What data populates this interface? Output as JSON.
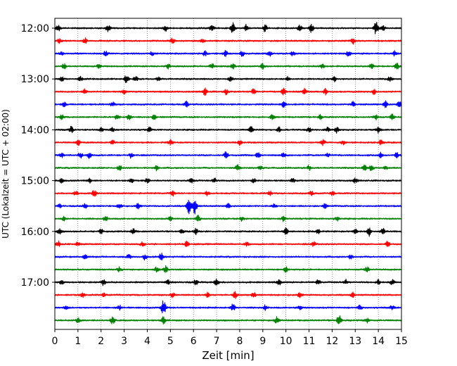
{
  "chart_data": {
    "type": "line",
    "subtype": "helicorder seismogram",
    "title": "",
    "xlabel": "Zeit  [min]",
    "ylabel": "UTC (Lokalzeit = UTC + 02:00)",
    "xlim": [
      0,
      15
    ],
    "x_ticks": [
      0,
      1,
      2,
      3,
      4,
      5,
      6,
      7,
      8,
      9,
      10,
      11,
      12,
      13,
      14,
      15
    ],
    "y_range": [
      "12:00",
      "17:59"
    ],
    "y_ticks": [
      "12:00",
      "13:00",
      "14:00",
      "15:00",
      "16:00",
      "17:00"
    ],
    "trace_interval_minutes": 15,
    "trace_start_times": [
      "12:00",
      "12:15",
      "12:30",
      "12:45",
      "13:00",
      "13:15",
      "13:30",
      "13:45",
      "14:00",
      "14:15",
      "14:30",
      "14:45",
      "15:00",
      "15:15",
      "15:30",
      "15:45",
      "16:00",
      "16:15",
      "16:30",
      "16:45",
      "17:00",
      "17:15",
      "17:30",
      "17:45"
    ],
    "trace_color_cycle": [
      "#000000",
      "#ff0000",
      "#0000ff",
      "#008000"
    ],
    "grid": "vertical dotted lines at each minute",
    "events": [
      [
        [
          0.15,
          0.45
        ],
        [
          2.3,
          0.5
        ],
        [
          4.8,
          0.45
        ],
        [
          6.8,
          0.5
        ],
        [
          7.7,
          1.0
        ],
        [
          8.3,
          0.6
        ],
        [
          9.1,
          0.55
        ],
        [
          10.6,
          0.5
        ],
        [
          11.1,
          0.7
        ],
        [
          13.9,
          1.0
        ],
        [
          14.2,
          0.5
        ]
      ],
      [
        [
          0.2,
          0.35
        ],
        [
          1.3,
          0.45
        ],
        [
          5.1,
          0.5
        ],
        [
          6.4,
          0.45
        ],
        [
          12.9,
          0.45
        ]
      ],
      [
        [
          0.3,
          0.35
        ],
        [
          2.2,
          0.4
        ],
        [
          4.2,
          0.3
        ],
        [
          6.5,
          0.35
        ],
        [
          7.4,
          0.45
        ],
        [
          8.1,
          0.4
        ],
        [
          9.3,
          0.35
        ],
        [
          10.3,
          0.35
        ],
        [
          12.7,
          0.4
        ],
        [
          14.7,
          0.35
        ]
      ],
      [
        [
          0.4,
          0.4
        ],
        [
          1.9,
          0.35
        ],
        [
          4.9,
          0.35
        ],
        [
          6.8,
          0.4
        ],
        [
          7.7,
          0.45
        ],
        [
          9.0,
          0.4
        ],
        [
          11.6,
          0.35
        ],
        [
          13.7,
          0.4
        ],
        [
          14.8,
          0.45
        ]
      ],
      [
        [
          0.3,
          0.35
        ],
        [
          1.1,
          0.35
        ],
        [
          3.1,
          0.7
        ],
        [
          3.5,
          0.4
        ],
        [
          4.5,
          0.35
        ],
        [
          7.6,
          0.4
        ],
        [
          10.1,
          0.35
        ],
        [
          12.1,
          0.35
        ],
        [
          14.5,
          0.4
        ]
      ],
      [
        [
          1.3,
          0.45
        ],
        [
          3.0,
          0.35
        ],
        [
          6.5,
          0.6
        ],
        [
          7.4,
          0.4
        ],
        [
          8.6,
          0.5
        ],
        [
          9.9,
          0.5
        ],
        [
          10.8,
          0.45
        ],
        [
          11.7,
          0.45
        ],
        [
          13.8,
          0.45
        ]
      ],
      [
        [
          0.4,
          0.35
        ],
        [
          2.5,
          0.35
        ],
        [
          5.7,
          0.45
        ],
        [
          9.9,
          0.45
        ],
        [
          12.9,
          0.4
        ],
        [
          14.3,
          0.5
        ],
        [
          14.9,
          0.45
        ]
      ],
      [
        [
          0.3,
          0.35
        ],
        [
          2.7,
          0.5
        ],
        [
          3.2,
          0.4
        ],
        [
          4.3,
          0.35
        ],
        [
          9.4,
          0.4
        ],
        [
          11.5,
          0.35
        ],
        [
          13.9,
          0.4
        ],
        [
          14.6,
          0.5
        ]
      ],
      [
        [
          0.7,
          0.6
        ],
        [
          2.0,
          0.35
        ],
        [
          2.5,
          0.4
        ],
        [
          4.1,
          0.35
        ],
        [
          8.5,
          0.5
        ],
        [
          9.7,
          0.4
        ],
        [
          11.0,
          0.4
        ],
        [
          11.8,
          0.35
        ],
        [
          12.2,
          0.5
        ],
        [
          14.0,
          0.45
        ]
      ],
      [
        [
          1.0,
          0.45
        ],
        [
          2.5,
          0.35
        ],
        [
          5.0,
          0.4
        ],
        [
          8.0,
          0.4
        ],
        [
          11.6,
          0.45
        ],
        [
          12.5,
          0.4
        ],
        [
          14.1,
          0.35
        ]
      ],
      [
        [
          0.3,
          0.35
        ],
        [
          1.1,
          0.5
        ],
        [
          1.5,
          0.45
        ],
        [
          3.3,
          0.4
        ],
        [
          7.4,
          0.5
        ],
        [
          8.8,
          0.45
        ],
        [
          9.9,
          0.35
        ],
        [
          11.8,
          0.35
        ],
        [
          14.1,
          0.4
        ],
        [
          14.8,
          0.45
        ]
      ],
      [
        [
          2.8,
          0.45
        ],
        [
          4.4,
          0.35
        ],
        [
          7.9,
          0.45
        ],
        [
          8.9,
          0.35
        ],
        [
          11.0,
          0.35
        ],
        [
          13.4,
          0.4
        ],
        [
          13.7,
          0.45
        ],
        [
          14.3,
          0.35
        ]
      ],
      [
        [
          0.3,
          0.3
        ],
        [
          1.5,
          0.35
        ],
        [
          3.3,
          0.4
        ],
        [
          4.0,
          0.35
        ],
        [
          5.9,
          0.5
        ],
        [
          6.9,
          0.35
        ],
        [
          8.6,
          0.35
        ],
        [
          10.3,
          0.35
        ],
        [
          13.0,
          0.4
        ]
      ],
      [
        [
          0.9,
          0.4
        ],
        [
          1.7,
          0.55
        ],
        [
          5.1,
          0.35
        ],
        [
          6.6,
          0.35
        ],
        [
          9.3,
          0.35
        ],
        [
          11.1,
          0.35
        ],
        [
          12.0,
          0.35
        ]
      ],
      [
        [
          0.2,
          0.3
        ],
        [
          1.3,
          0.35
        ],
        [
          2.8,
          0.4
        ],
        [
          3.6,
          0.4
        ],
        [
          5.8,
          1.2
        ],
        [
          6.05,
          1.5
        ],
        [
          7.5,
          0.35
        ],
        [
          9.5,
          0.35
        ],
        [
          11.7,
          0.35
        ]
      ],
      [
        [
          0.4,
          0.3
        ],
        [
          2.2,
          0.35
        ],
        [
          5.0,
          0.35
        ],
        [
          6.2,
          0.5
        ],
        [
          8.1,
          0.35
        ],
        [
          9.9,
          0.4
        ],
        [
          12.2,
          0.35
        ]
      ],
      [
        [
          0.2,
          0.45
        ],
        [
          2.0,
          0.35
        ],
        [
          3.4,
          0.5
        ],
        [
          5.5,
          0.35
        ],
        [
          6.1,
          0.45
        ],
        [
          10.0,
          0.5
        ],
        [
          11.4,
          0.45
        ],
        [
          13.0,
          0.45
        ],
        [
          13.6,
          0.8
        ],
        [
          14.2,
          0.45
        ]
      ],
      [
        [
          0.15,
          0.45
        ],
        [
          1.0,
          0.35
        ],
        [
          3.8,
          0.35
        ],
        [
          5.7,
          0.4
        ],
        [
          8.3,
          0.35
        ],
        [
          11.2,
          0.35
        ],
        [
          14.4,
          0.4
        ]
      ],
      [
        [
          1.3,
          0.35
        ],
        [
          3.2,
          0.35
        ],
        [
          3.9,
          0.45
        ],
        [
          4.6,
          0.6
        ],
        [
          12.8,
          0.35
        ]
      ],
      [
        [
          2.8,
          0.35
        ],
        [
          4.4,
          0.35
        ],
        [
          4.8,
          0.5
        ],
        [
          10.0,
          0.45
        ],
        [
          13.5,
          0.45
        ]
      ],
      [
        [
          0.3,
          0.45
        ],
        [
          2.1,
          0.5
        ],
        [
          4.9,
          0.35
        ],
        [
          6.1,
          0.45
        ],
        [
          7.0,
          0.6
        ],
        [
          9.7,
          0.45
        ],
        [
          11.4,
          0.35
        ],
        [
          12.6,
          0.4
        ],
        [
          14.0,
          0.4
        ],
        [
          14.6,
          0.45
        ]
      ],
      [
        [
          1.2,
          0.4
        ],
        [
          2.1,
          0.35
        ],
        [
          5.1,
          0.35
        ],
        [
          6.6,
          0.35
        ],
        [
          7.8,
          0.5
        ],
        [
          8.6,
          0.4
        ],
        [
          10.6,
          0.35
        ],
        [
          12.9,
          0.4
        ]
      ],
      [
        [
          0.5,
          0.3
        ],
        [
          2.8,
          0.35
        ],
        [
          4.7,
          1.4
        ],
        [
          7.7,
          0.7
        ],
        [
          9.1,
          0.35
        ],
        [
          10.6,
          0.35
        ],
        [
          13.2,
          0.35
        ],
        [
          14.6,
          0.4
        ]
      ],
      [
        [
          1.0,
          0.4
        ],
        [
          2.5,
          0.6
        ],
        [
          4.7,
          0.5
        ],
        [
          9.6,
          0.5
        ],
        [
          12.3,
          0.9
        ],
        [
          13.5,
          0.35
        ]
      ]
    ]
  }
}
